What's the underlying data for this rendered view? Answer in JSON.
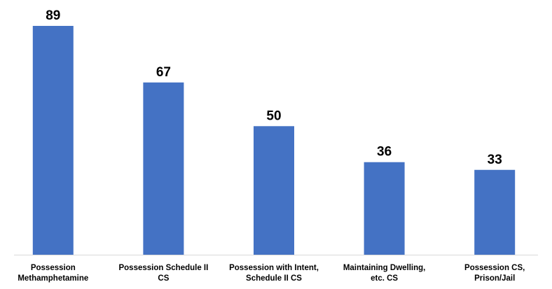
{
  "chart_data": {
    "type": "bar",
    "categories": [
      [
        "Possession",
        "Methamphetamine"
      ],
      [
        "Possession Schedule II",
        "CS"
      ],
      [
        "Possession with Intent,",
        "Schedule II CS"
      ],
      [
        "Maintaining Dwelling,",
        "etc. CS"
      ],
      [
        "Possession CS,",
        "Prison/Jail"
      ]
    ],
    "values": [
      89,
      67,
      50,
      36,
      33
    ],
    "title": "",
    "xlabel": "",
    "ylabel": "",
    "ylim": [
      0,
      89
    ],
    "grid": false,
    "legend": "none",
    "bar_color": "#4472C4",
    "show_data_labels": true
  }
}
